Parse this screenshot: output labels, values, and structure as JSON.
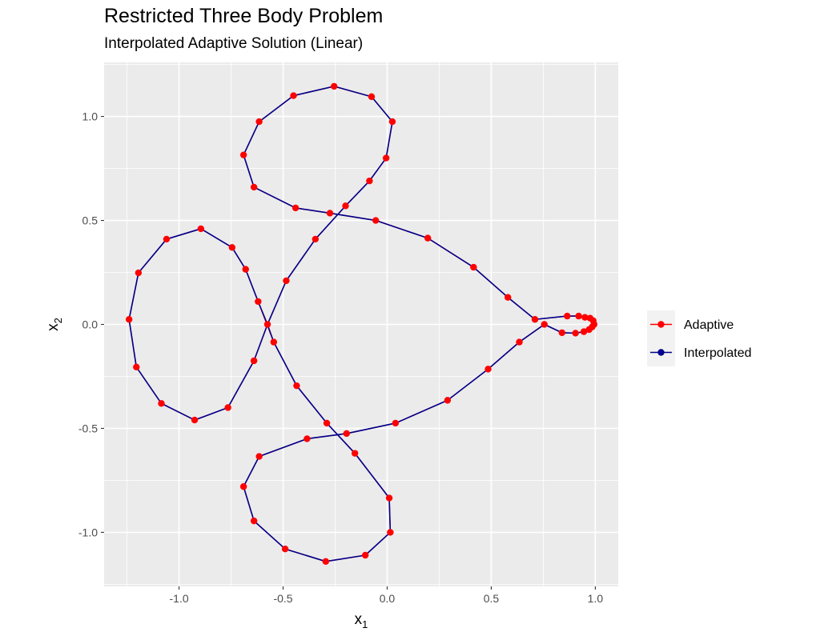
{
  "title": "Restricted Three Body Problem",
  "subtitle": "Interpolated Adaptive Solution (Linear)",
  "chart_data": {
    "type": "line",
    "xlabel": {
      "base": "x",
      "sub": "1"
    },
    "ylabel": {
      "base": "x",
      "sub": "2"
    },
    "xlim": [
      -1.36,
      1.11
    ],
    "ylim": [
      -1.26,
      1.26
    ],
    "xticks": [
      -1.0,
      -0.5,
      0.0,
      0.5,
      1.0
    ],
    "xtick_labels": [
      "-1.0",
      "-0.5",
      "0.0",
      "0.5",
      "1.0"
    ],
    "yticks": [
      -1.0,
      -0.5,
      0.0,
      0.5,
      1.0
    ],
    "ytick_labels": [
      "-1.0",
      "-0.5",
      "0.0",
      "0.5",
      "1.0"
    ],
    "grid": true,
    "legend_position": "right",
    "legend": [
      "Adaptive",
      "Interpolated"
    ],
    "colors": {
      "panel_bg": "#ebebeb",
      "grid": "#ffffff",
      "adaptive": "#ff0000",
      "interpolated": "#00008b",
      "legend_key_bg": "#f2f2f2"
    },
    "series": [
      {
        "name": "Interpolated",
        "points": [
          [
            0.994,
            0.0
          ],
          [
            0.99,
            0.018
          ],
          [
            0.975,
            0.03
          ],
          [
            0.95,
            0.034
          ],
          [
            0.92,
            0.04
          ],
          [
            0.865,
            0.04
          ],
          [
            0.71,
            0.024
          ],
          [
            0.58,
            0.13
          ],
          [
            0.415,
            0.275
          ],
          [
            0.195,
            0.415
          ],
          [
            -0.055,
            0.5
          ],
          [
            -0.275,
            0.535
          ],
          [
            -0.44,
            0.56
          ],
          [
            -0.64,
            0.66
          ],
          [
            -0.69,
            0.815
          ],
          [
            -0.615,
            0.975
          ],
          [
            -0.45,
            1.1
          ],
          [
            -0.255,
            1.145
          ],
          [
            -0.075,
            1.095
          ],
          [
            0.025,
            0.975
          ],
          [
            -0.005,
            0.8
          ],
          [
            -0.085,
            0.69
          ],
          [
            -0.2,
            0.57
          ],
          [
            -0.345,
            0.41
          ],
          [
            -0.485,
            0.21
          ],
          [
            -0.575,
            0.0
          ],
          [
            -0.64,
            -0.175
          ],
          [
            -0.765,
            -0.4
          ],
          [
            -0.925,
            -0.46
          ],
          [
            -1.085,
            -0.38
          ],
          [
            -1.205,
            -0.205
          ],
          [
            -1.24,
            0.024
          ],
          [
            -1.195,
            0.248
          ],
          [
            -1.06,
            0.41
          ],
          [
            -0.895,
            0.46
          ],
          [
            -0.745,
            0.37
          ],
          [
            -0.68,
            0.265
          ],
          [
            -0.62,
            0.11
          ],
          [
            -0.575,
            0.0
          ],
          [
            -0.545,
            -0.085
          ],
          [
            -0.435,
            -0.295
          ],
          [
            -0.29,
            -0.475
          ],
          [
            -0.155,
            -0.62
          ],
          [
            0.01,
            -0.835
          ],
          [
            0.015,
            -1.0
          ],
          [
            -0.105,
            -1.11
          ],
          [
            -0.295,
            -1.14
          ],
          [
            -0.49,
            -1.08
          ],
          [
            -0.64,
            -0.945
          ],
          [
            -0.69,
            -0.78
          ],
          [
            -0.615,
            -0.635
          ],
          [
            -0.385,
            -0.55
          ],
          [
            -0.195,
            -0.525
          ],
          [
            0.04,
            -0.475
          ],
          [
            0.29,
            -0.365
          ],
          [
            0.485,
            -0.215
          ],
          [
            0.635,
            -0.085
          ],
          [
            0.755,
            0.0
          ],
          [
            0.84,
            -0.04
          ],
          [
            0.905,
            -0.042
          ],
          [
            0.945,
            -0.035
          ],
          [
            0.97,
            -0.025
          ],
          [
            0.985,
            -0.012
          ],
          [
            0.994,
            0.0
          ]
        ]
      },
      {
        "name": "Adaptive",
        "points": [
          [
            0.994,
            0.0
          ],
          [
            0.99,
            0.018
          ],
          [
            0.975,
            0.03
          ],
          [
            0.95,
            0.034
          ],
          [
            0.92,
            0.04
          ],
          [
            0.865,
            0.04
          ],
          [
            0.71,
            0.024
          ],
          [
            0.58,
            0.13
          ],
          [
            0.415,
            0.275
          ],
          [
            0.195,
            0.415
          ],
          [
            -0.055,
            0.5
          ],
          [
            -0.275,
            0.535
          ],
          [
            -0.44,
            0.56
          ],
          [
            -0.64,
            0.66
          ],
          [
            -0.69,
            0.815
          ],
          [
            -0.615,
            0.975
          ],
          [
            -0.45,
            1.1
          ],
          [
            -0.255,
            1.145
          ],
          [
            -0.075,
            1.095
          ],
          [
            0.025,
            0.975
          ],
          [
            -0.005,
            0.8
          ],
          [
            -0.085,
            0.69
          ],
          [
            -0.2,
            0.57
          ],
          [
            -0.345,
            0.41
          ],
          [
            -0.485,
            0.21
          ],
          [
            -0.575,
            0.0
          ],
          [
            -0.64,
            -0.175
          ],
          [
            -0.765,
            -0.4
          ],
          [
            -0.925,
            -0.46
          ],
          [
            -1.085,
            -0.38
          ],
          [
            -1.205,
            -0.205
          ],
          [
            -1.24,
            0.024
          ],
          [
            -1.195,
            0.248
          ],
          [
            -1.06,
            0.41
          ],
          [
            -0.895,
            0.46
          ],
          [
            -0.745,
            0.37
          ],
          [
            -0.68,
            0.265
          ],
          [
            -0.62,
            0.11
          ],
          [
            -0.545,
            -0.085
          ],
          [
            -0.435,
            -0.295
          ],
          [
            -0.29,
            -0.475
          ],
          [
            -0.155,
            -0.62
          ],
          [
            0.01,
            -0.835
          ],
          [
            0.015,
            -1.0
          ],
          [
            -0.105,
            -1.11
          ],
          [
            -0.295,
            -1.14
          ],
          [
            -0.49,
            -1.08
          ],
          [
            -0.64,
            -0.945
          ],
          [
            -0.69,
            -0.78
          ],
          [
            -0.615,
            -0.635
          ],
          [
            -0.385,
            -0.55
          ],
          [
            -0.195,
            -0.525
          ],
          [
            0.04,
            -0.475
          ],
          [
            0.29,
            -0.365
          ],
          [
            0.485,
            -0.215
          ],
          [
            0.635,
            -0.085
          ],
          [
            0.755,
            0.0
          ],
          [
            0.84,
            -0.04
          ],
          [
            0.905,
            -0.042
          ],
          [
            0.945,
            -0.035
          ],
          [
            0.97,
            -0.025
          ],
          [
            0.985,
            -0.012
          ]
        ]
      }
    ]
  }
}
